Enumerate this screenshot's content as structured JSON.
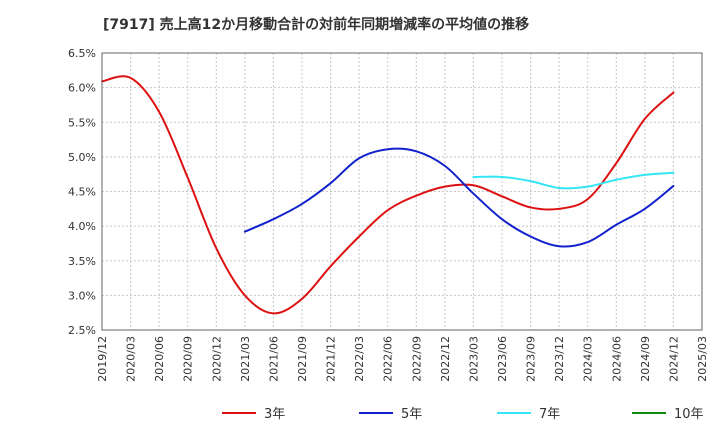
{
  "chart_data": {
    "type": "line",
    "title": "[7917]  売上高12か月移動合計の対前年同期増減率の平均値の推移",
    "xlabel": "",
    "ylabel": "",
    "x": [
      "2019/12",
      "2020/03",
      "2020/06",
      "2020/09",
      "2020/12",
      "2021/03",
      "2021/06",
      "2021/09",
      "2021/12",
      "2022/03",
      "2022/06",
      "2022/09",
      "2022/12",
      "2023/03",
      "2023/06",
      "2023/09",
      "2023/12",
      "2024/03",
      "2024/06",
      "2024/09",
      "2024/12",
      "2025/03"
    ],
    "ylim": [
      2.5,
      6.5
    ],
    "y_ticks": [
      "2.5%",
      "3.0%",
      "3.5%",
      "4.0%",
      "4.5%",
      "5.0%",
      "5.5%",
      "6.0%",
      "6.5%"
    ],
    "grid": true,
    "legend_position": "bottom",
    "series": [
      {
        "name": "3年",
        "color": "#dd1111",
        "values": [
          6.09,
          6.14,
          5.65,
          4.7,
          3.68,
          3.0,
          2.74,
          2.95,
          3.42,
          3.85,
          4.23,
          4.44,
          4.57,
          4.59,
          4.43,
          4.27,
          4.25,
          4.39,
          4.91,
          5.55,
          5.93,
          null
        ]
      },
      {
        "name": "5年",
        "color": "#1122cc",
        "values": [
          null,
          null,
          null,
          null,
          null,
          3.92,
          4.1,
          4.32,
          4.62,
          4.98,
          5.11,
          5.08,
          4.87,
          4.47,
          4.1,
          3.85,
          3.71,
          3.77,
          4.02,
          4.25,
          4.58,
          null
        ]
      },
      {
        "name": "7年",
        "color": "#33e5f5",
        "values": [
          null,
          null,
          null,
          null,
          null,
          null,
          null,
          null,
          null,
          null,
          null,
          null,
          null,
          4.71,
          4.71,
          4.65,
          4.55,
          4.57,
          4.67,
          4.74,
          4.77,
          null
        ]
      },
      {
        "name": "10年",
        "color": "#118811",
        "values": [
          null,
          null,
          null,
          null,
          null,
          null,
          null,
          null,
          null,
          null,
          null,
          null,
          null,
          null,
          null,
          null,
          null,
          null,
          null,
          null,
          null,
          null
        ]
      }
    ]
  }
}
